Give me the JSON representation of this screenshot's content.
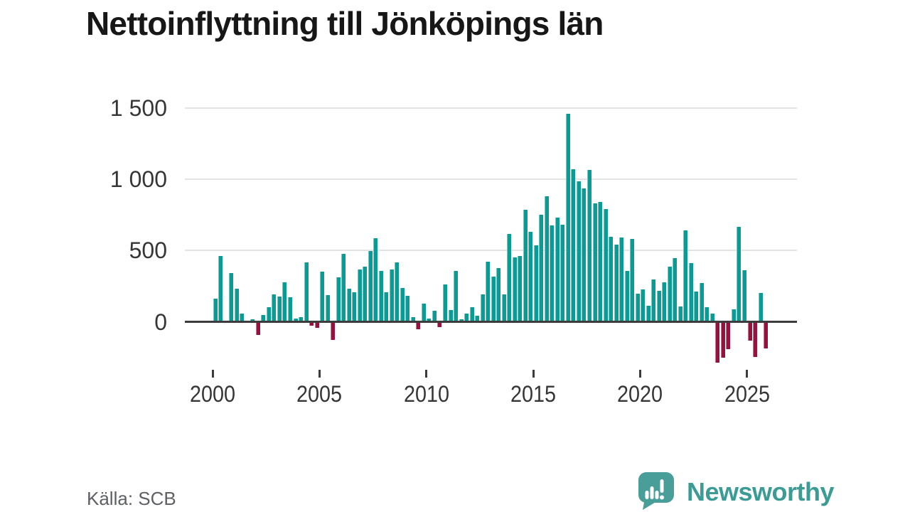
{
  "title": "Nettoinflyttning till Jönköpings län",
  "source": "Källa: SCB",
  "branding": {
    "logo_text": "Newsworthy",
    "logo_icon": "speech-bubble-with-bar-chart-and-exclamation",
    "logo_color": "#4a9e99",
    "logo_text_color": "#3b9c96"
  },
  "chart_data": {
    "type": "bar",
    "title": "Nettoinflyttning till Jönköpings län",
    "frequency": "quarterly",
    "start_year": 2000,
    "quarters_per_year": 4,
    "values": [
      160,
      460,
      0,
      340,
      230,
      55,
      0,
      15,
      -90,
      45,
      100,
      190,
      175,
      275,
      170,
      20,
      30,
      415,
      -25,
      -40,
      350,
      185,
      -125,
      310,
      475,
      230,
      205,
      365,
      385,
      495,
      585,
      355,
      205,
      365,
      415,
      235,
      180,
      30,
      -50,
      125,
      20,
      75,
      -35,
      260,
      80,
      355,
      15,
      55,
      100,
      40,
      190,
      420,
      315,
      375,
      190,
      615,
      450,
      460,
      785,
      630,
      535,
      750,
      880,
      675,
      730,
      680,
      1460,
      1070,
      985,
      935,
      1065,
      830,
      840,
      790,
      595,
      540,
      590,
      355,
      580,
      195,
      225,
      110,
      295,
      215,
      275,
      385,
      445,
      105,
      640,
      410,
      210,
      270,
      100,
      55,
      -285,
      -250,
      -190,
      85,
      665,
      360,
      -130,
      -245,
      200,
      -185
    ],
    "x_ticks": [
      {
        "label": "2000",
        "year": 2000
      },
      {
        "label": "2005",
        "year": 2005
      },
      {
        "label": "2010",
        "year": 2010
      },
      {
        "label": "2015",
        "year": 2015
      },
      {
        "label": "2020",
        "year": 2020
      },
      {
        "label": "2025",
        "year": 2025
      }
    ],
    "y_ticks": [
      {
        "label": "0",
        "value": 0
      },
      {
        "label": "500",
        "value": 500
      },
      {
        "label": "1 000",
        "value": 1000
      },
      {
        "label": "1 500",
        "value": 1500
      }
    ],
    "xlim": [
      1998.7,
      2027.3
    ],
    "ylim": [
      -350,
      1560
    ],
    "grid": "horizontal",
    "legend": "none",
    "colors": {
      "positive": "#0a9c94",
      "negative": "#98103c",
      "gridline": "#e4e4e4",
      "axis": "#3c3c3c"
    }
  }
}
